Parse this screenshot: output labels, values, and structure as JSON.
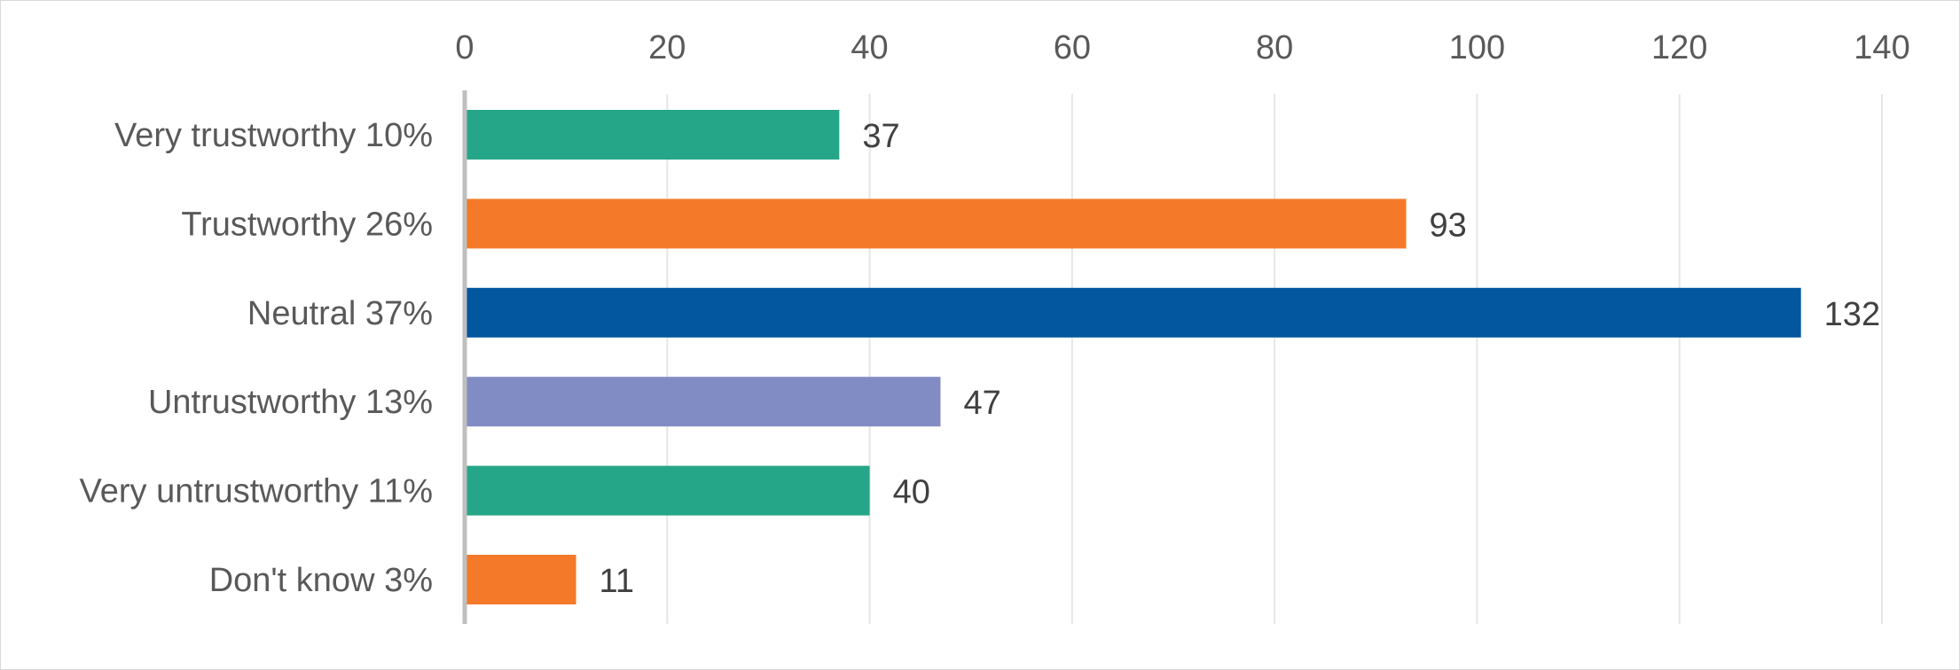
{
  "chart_data": {
    "type": "bar",
    "orientation": "horizontal",
    "categories": [
      "Very trustworthy 10%",
      "Trustworthy 26%",
      "Neutral 37%",
      "Untrustworthy 13%",
      "Very untrustworthy 11%",
      "Don't know 3%"
    ],
    "values": [
      37,
      93,
      132,
      47,
      40,
      11
    ],
    "data_labels": [
      "37",
      "93",
      "132",
      "47",
      "40",
      "11"
    ],
    "colors": [
      "#26a688",
      "#f47a2a",
      "#02579e",
      "#828cc4",
      "#26a688",
      "#f47a2a"
    ],
    "xlim": [
      0,
      140
    ],
    "x_ticks": [
      0,
      20,
      40,
      60,
      80,
      100,
      120,
      140
    ],
    "x_tick_labels": [
      "0",
      "20",
      "40",
      "60",
      "80",
      "100",
      "120",
      "140"
    ],
    "x_axis_position": "top",
    "grid": true,
    "legend": false,
    "title": "",
    "xlabel": "",
    "ylabel": ""
  }
}
